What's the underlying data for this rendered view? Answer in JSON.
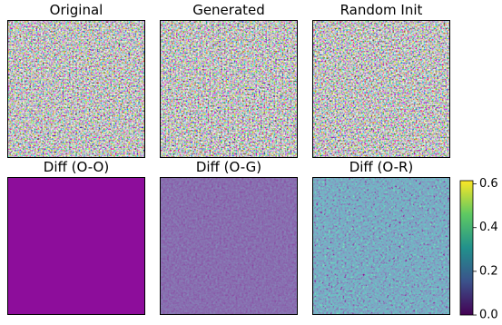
{
  "chart_data": {
    "type": "image-grid",
    "panels": [
      {
        "title": "Original"
      },
      {
        "title": "Generated"
      },
      {
        "title": "Random Init"
      },
      {
        "title": "Diff (O-O)"
      },
      {
        "title": "Diff (O-G)"
      },
      {
        "title": "Diff (O-R)"
      }
    ],
    "colorbar": {
      "colormap": "viridis",
      "ylim": [
        0,
        0.615
      ],
      "yticks": [
        {
          "value": 0,
          "label": "0.0"
        },
        0.2,
        0.4,
        0.6
      ]
    }
  }
}
